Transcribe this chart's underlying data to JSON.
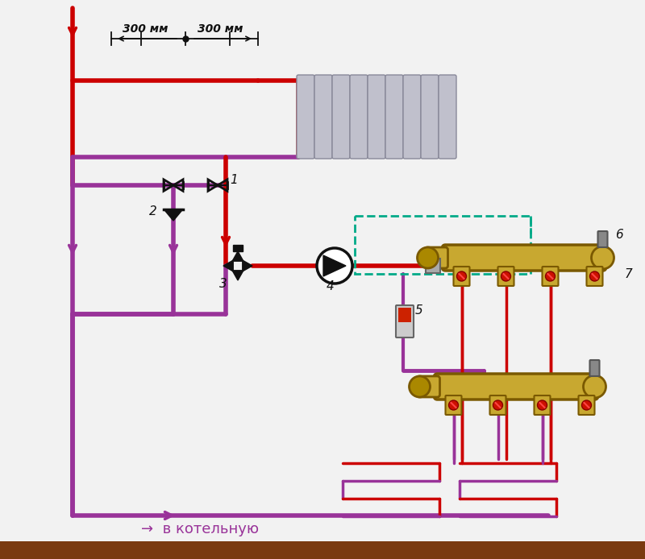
{
  "bg": "#f2f2f2",
  "red": "#cc0000",
  "purple": "#993399",
  "gold": "#b8960c",
  "gold_light": "#c8a830",
  "gray_rad": "#b8b8c8",
  "black": "#111111",
  "teal": "#00aa88",
  "brown_bar": "#7a3a10",
  "bottom_text": "→  в котельную",
  "dim_text_left": "300 мм",
  "dim_text_right": "300 мм",
  "label_1": "1",
  "label_2": "2",
  "label_3": "3",
  "label_4": "4",
  "label_5": "5",
  "label_6": "6",
  "label_7": "7"
}
